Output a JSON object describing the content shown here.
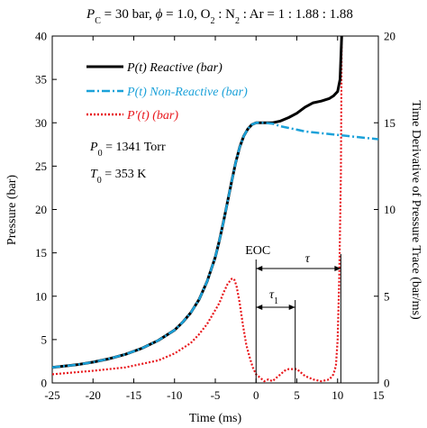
{
  "chart_data": {
    "type": "line",
    "title": "P_C = 30 bar, ϕ = 1.0, O_2 : N_2 : Ar = 1 : 1.88 : 1.88",
    "title_parts": {
      "p_sym": "P",
      "p_sub": "C",
      "text1": " = 30 bar, ",
      "phi": "ϕ",
      "text2": " = 1.0, O",
      "o_sub": "2",
      "text3": " : N",
      "n_sub": "2",
      "text4": " : Ar = 1 : 1.88 : 1.88"
    },
    "xlabel": "Time (ms)",
    "ylabel": "Pressure (bar)",
    "y2label": "Time Derivative of Pressure Trace (bar/ms)",
    "xlim": [
      -25,
      15
    ],
    "ylim": [
      0,
      40
    ],
    "y2lim": [
      0,
      20
    ],
    "x_ticks": [
      -25,
      -20,
      -15,
      -10,
      -5,
      0,
      5,
      10,
      15
    ],
    "y_ticks": [
      0,
      5,
      10,
      15,
      20,
      25,
      30,
      35,
      40
    ],
    "y2_ticks": [
      0,
      5,
      10,
      15,
      20
    ],
    "legend_position": "upper-left",
    "series": [
      {
        "name": "P(t) Reactive (bar)",
        "color": "#000000",
        "style": "solid",
        "axis": "left",
        "x": [
          -25,
          -22,
          -20,
          -18,
          -16,
          -14,
          -12,
          -10,
          -9,
          -8,
          -7,
          -6,
          -5,
          -4.5,
          -4,
          -3.5,
          -3,
          -2.5,
          -2,
          -1.5,
          -1,
          -0.5,
          0,
          1,
          2,
          3,
          4,
          5,
          6,
          7,
          8,
          9,
          9.5,
          10,
          10.3,
          10.5
        ],
        "y": [
          1.8,
          2.1,
          2.4,
          2.8,
          3.3,
          4.0,
          4.9,
          6.1,
          7.0,
          8.1,
          9.6,
          11.7,
          14.5,
          16.4,
          18.6,
          20.9,
          23.2,
          25.4,
          27.2,
          28.5,
          29.3,
          29.8,
          30.0,
          30.0,
          30.0,
          30.2,
          30.6,
          31.1,
          31.8,
          32.3,
          32.5,
          32.8,
          33.1,
          33.6,
          35.0,
          40.0
        ]
      },
      {
        "name": "P(t) Non-Reactive (bar)",
        "color": "#1ba1d9",
        "style": "dashdot",
        "axis": "left",
        "x": [
          -25,
          -22,
          -20,
          -18,
          -16,
          -14,
          -12,
          -10,
          -9,
          -8,
          -7,
          -6,
          -5,
          -4.5,
          -4,
          -3.5,
          -3,
          -2.5,
          -2,
          -1.5,
          -1,
          -0.5,
          0,
          1,
          2,
          3,
          4,
          5,
          6,
          8,
          10,
          12,
          14,
          15
        ],
        "y": [
          1.8,
          2.1,
          2.4,
          2.8,
          3.3,
          4.0,
          4.9,
          6.1,
          7.0,
          8.1,
          9.6,
          11.7,
          14.5,
          16.4,
          18.6,
          20.9,
          23.2,
          25.4,
          27.2,
          28.5,
          29.3,
          29.8,
          30.0,
          30.0,
          29.9,
          29.6,
          29.4,
          29.2,
          29.0,
          28.8,
          28.6,
          28.4,
          28.2,
          28.1
        ]
      },
      {
        "name": "P'(t) (bar)",
        "color": "#e8161b",
        "style": "dotted",
        "axis": "right",
        "x": [
          -25,
          -20,
          -16,
          -12,
          -10,
          -8,
          -7,
          -6,
          -5,
          -4.5,
          -4,
          -3.5,
          -3,
          -2.7,
          -2.4,
          -2,
          -1.6,
          -1.2,
          -0.8,
          -0.4,
          0,
          0.5,
          1,
          1.5,
          2,
          2.5,
          3,
          3.5,
          4,
          4.5,
          5,
          5.5,
          6,
          7,
          8,
          9,
          9.5,
          9.8,
          10,
          10.2,
          10.4,
          10.5
        ],
        "y": [
          0.5,
          0.7,
          0.9,
          1.3,
          1.7,
          2.3,
          2.8,
          3.4,
          4.2,
          4.6,
          5.2,
          5.7,
          6.0,
          6.0,
          5.6,
          4.6,
          3.3,
          2.2,
          1.5,
          0.9,
          0.5,
          0.3,
          0.1,
          0.2,
          0.1,
          0.3,
          0.5,
          0.7,
          0.8,
          0.8,
          0.8,
          0.6,
          0.4,
          0.2,
          0.1,
          0.2,
          0.5,
          1.0,
          2.5,
          6.0,
          12.0,
          20.0
        ]
      }
    ],
    "annotations": {
      "eoc": "EOC",
      "tau": "τ",
      "tau1": "τ",
      "tau1_sub": "1",
      "p0_sym": "P",
      "p0_sub": "0",
      "p0_value": " = 1341 Torr",
      "t0_sym": "T",
      "t0_sub": "0",
      "t0_value": " = 353 K",
      "eoc_time": 0,
      "tau1_end_time": 4.8,
      "tau_end_time": 10.4
    },
    "legend": {
      "reactive_sym": "P",
      "reactive_rest": "(t) Reactive (bar)",
      "nonreactive_sym": "P",
      "nonreactive_rest": "(t) Non-Reactive (bar)",
      "deriv_sym": "P'",
      "deriv_rest": "(t) (bar)"
    }
  }
}
